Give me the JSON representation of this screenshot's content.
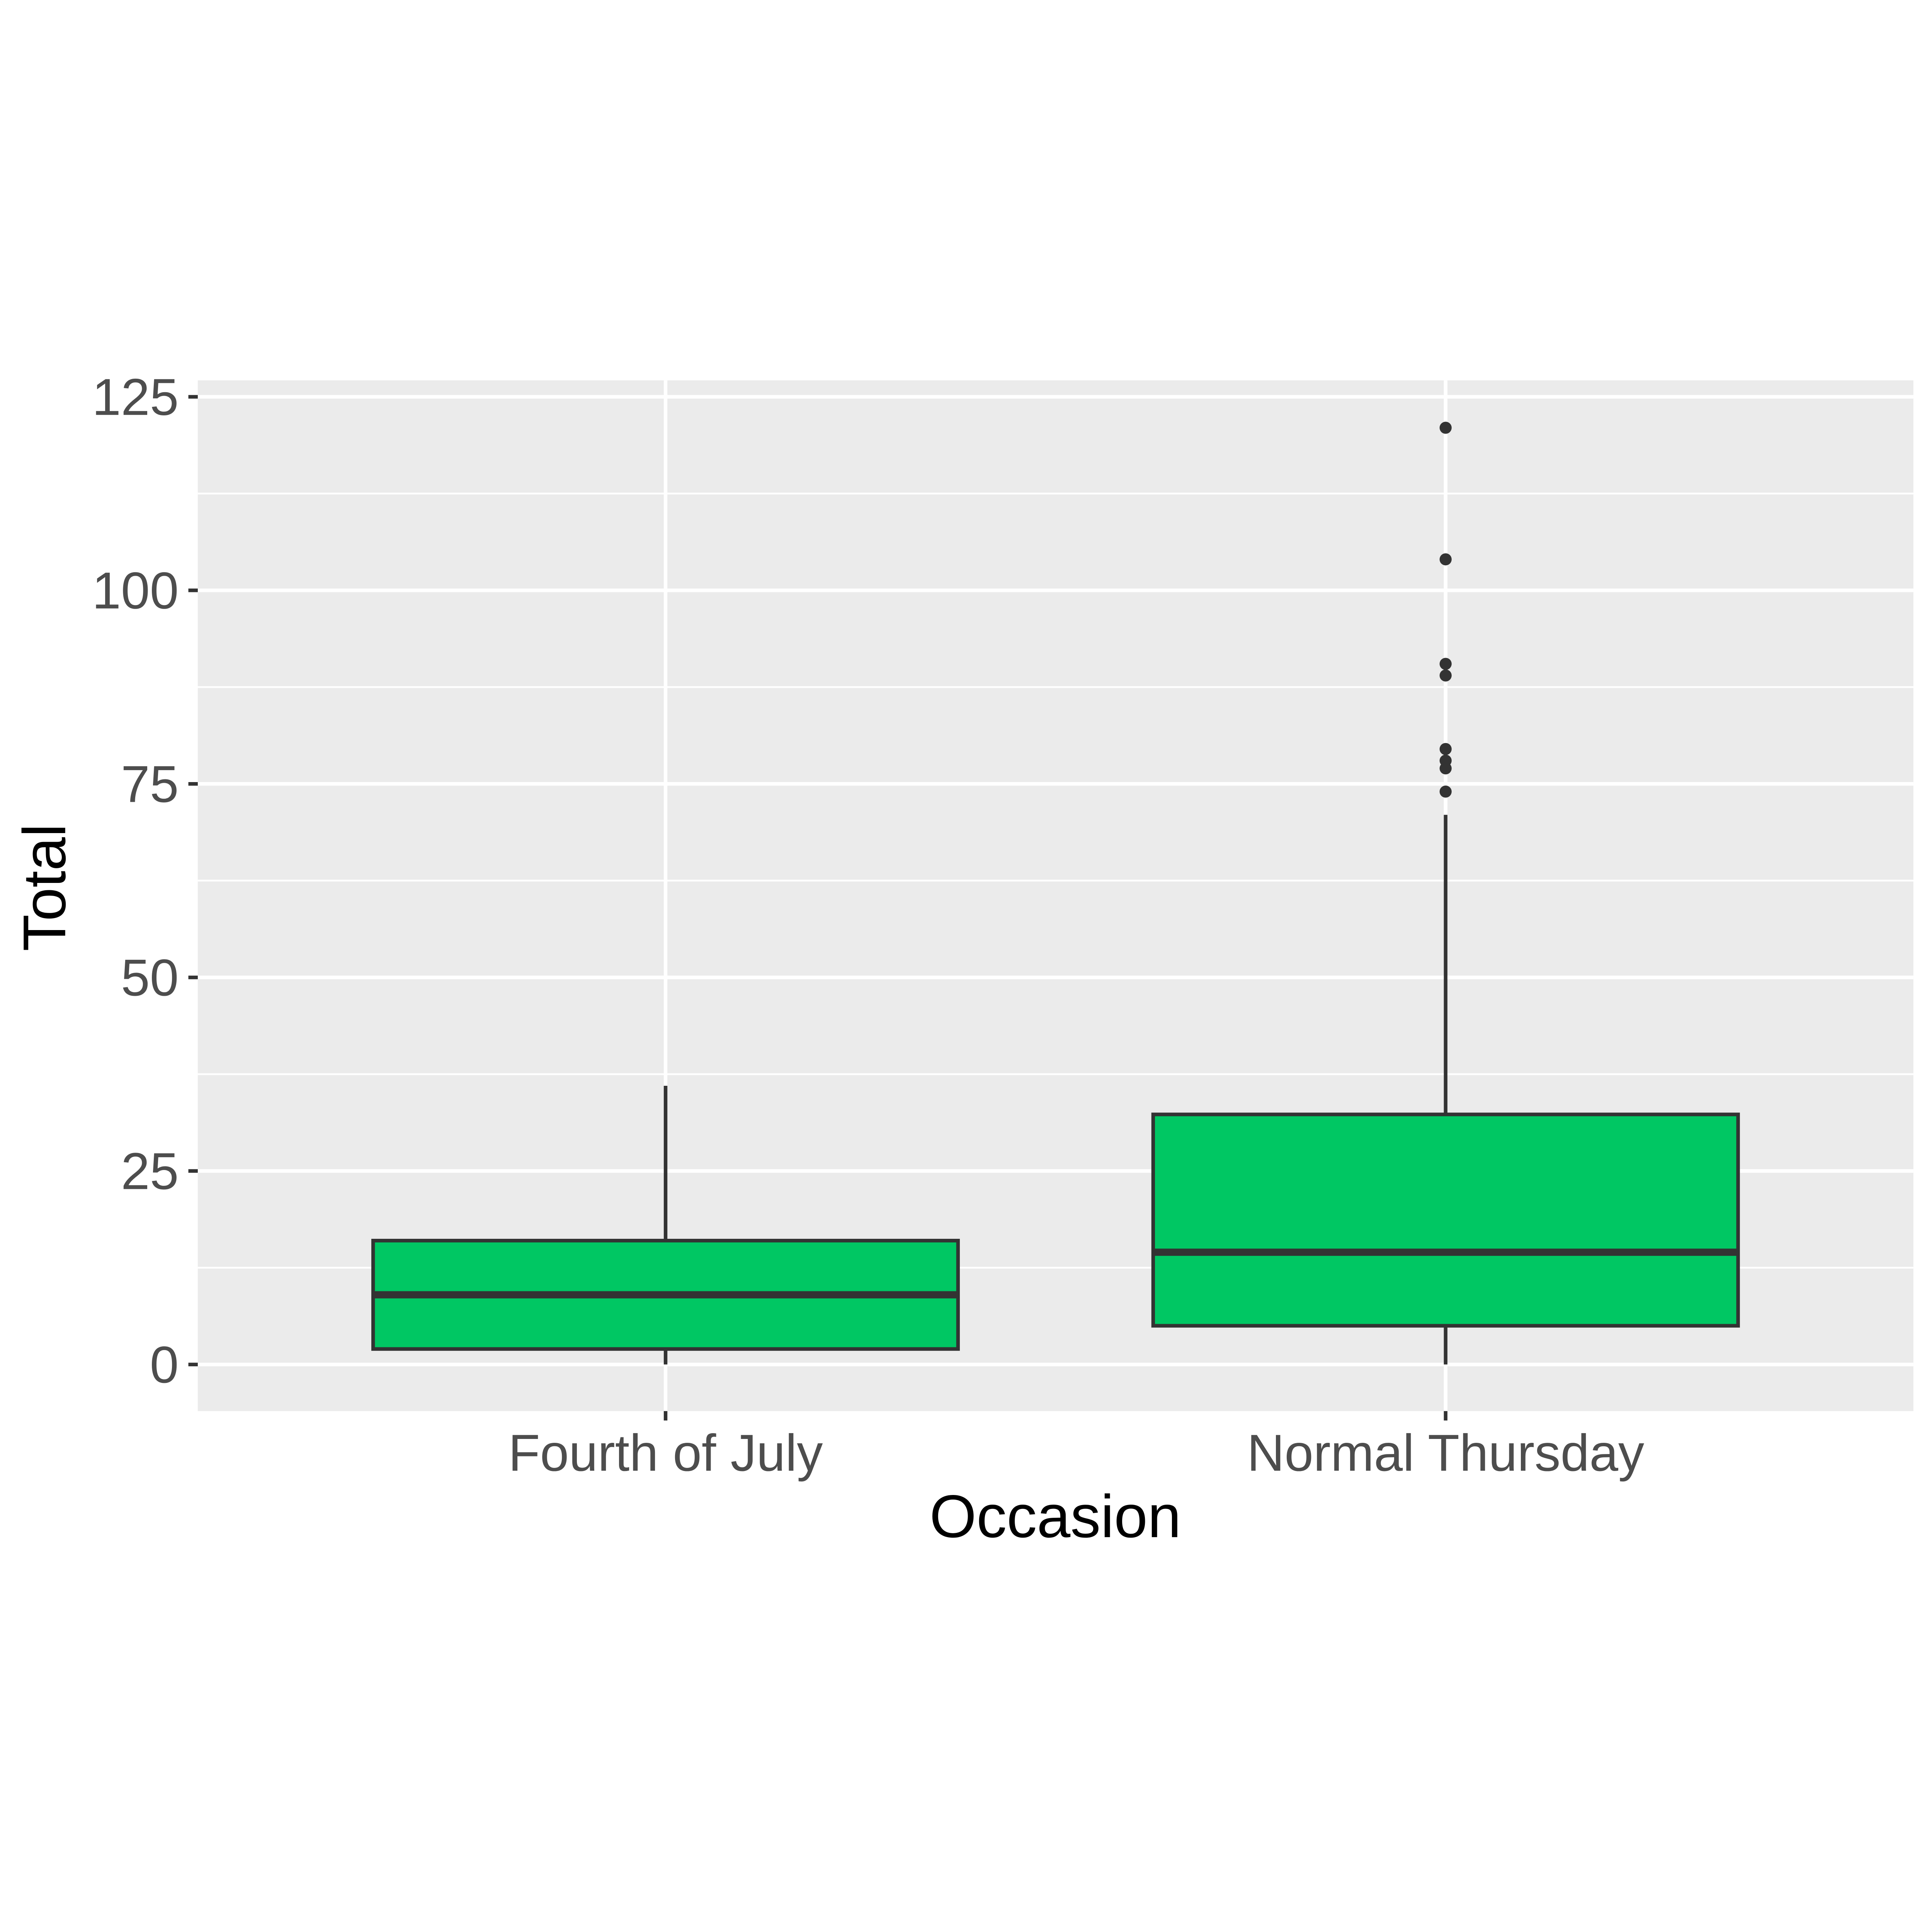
{
  "chart_data": {
    "type": "boxplot",
    "title": "",
    "xlabel": "Occasion",
    "ylabel": "Total",
    "categories": [
      "Fourth of July",
      "Normal Thursday"
    ],
    "yticks": [
      0,
      25,
      50,
      75,
      100,
      125
    ],
    "ytick_labels": [
      "0",
      "25",
      "50",
      "75",
      "100",
      "125"
    ],
    "ylim": [
      -6,
      127
    ],
    "grid": {
      "major": true,
      "minor": true,
      "vertical_at_categories": true
    },
    "legend": "none",
    "series": [
      {
        "category": "Fourth of July",
        "whisker_low": 0,
        "q1": 2,
        "median": 9,
        "q3": 16,
        "whisker_high": 36,
        "outliers": []
      },
      {
        "category": "Normal Thursday",
        "whisker_low": 0,
        "q1": 5,
        "median": 14.5,
        "q3": 32.3,
        "whisker_high": 71,
        "outliers": [
          74,
          77,
          78,
          79.5,
          89,
          90.5,
          104,
          121
        ]
      }
    ],
    "colors": {
      "page_bg": "#FFFFFF",
      "panel_bg": "#EBEBEB",
      "grid": "#FFFFFF",
      "box_fill": "#00C763",
      "box_stroke": "#333333",
      "whisker": "#333333",
      "median": "#333333",
      "outlier": "#333333",
      "tick_mark": "#333333",
      "axis_text": "#4D4D4D",
      "title_text": "#000000"
    }
  }
}
